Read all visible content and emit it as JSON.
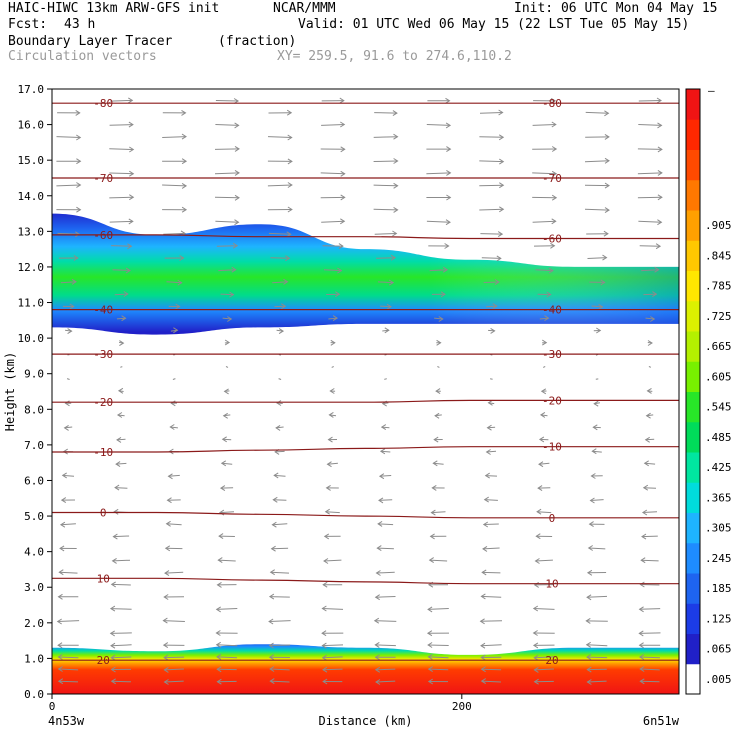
{
  "header": {
    "model": "HAIC-HIWC 13km ARW-GFS init",
    "org": "NCAR/MMM",
    "init": "Init: 06 UTC Mon 04 May 15",
    "fcst_label": "Fcst:",
    "fcst_value": "43 h",
    "valid": "Valid: 01 UTC Wed 06 May 15 (22 LST Tue 05 May 15)",
    "field1": "Boundary Layer Tracer",
    "field1_units": "(fraction)",
    "field2": "Circulation vectors",
    "xy": "XY= 259.5, 91.6 to 274.6,110.2"
  },
  "chart_data": {
    "type": "heatmap",
    "title": "",
    "xlabel": "Distance (km)",
    "ylabel": "Height (km)",
    "xlim": [
      0,
      306
    ],
    "ylim": [
      0,
      17
    ],
    "x_ticks": [
      0,
      200
    ],
    "x_tick_labels": [
      "0",
      "200"
    ],
    "x_end_labels": [
      "4n53w",
      "6n51w"
    ],
    "y_ticks": [
      0,
      1,
      2,
      3,
      4,
      5,
      6,
      7,
      8,
      9,
      10,
      11,
      12,
      13,
      14,
      15,
      16,
      17
    ],
    "y_tick_labels": [
      "0.0",
      "1.0",
      "2.0",
      "3.0",
      "4.0",
      "5.0",
      "6.0",
      "7.0",
      "8.0",
      "9.0",
      "10.0",
      "11.0",
      "12.0",
      "13.0",
      "14.0",
      "15.0",
      "16.0",
      "17.0"
    ],
    "colorbar": {
      "labels": [
        ".005",
        ".065",
        ".125",
        ".185",
        ".245",
        ".305",
        ".365",
        ".425",
        ".485",
        ".545",
        ".605",
        ".665",
        ".725",
        ".785",
        ".845",
        ".905"
      ],
      "top_label": "–",
      "colors": [
        "#ffffff",
        "#2020c8",
        "#1c3ce6",
        "#1e64f0",
        "#1e8cff",
        "#1eb4ff",
        "#00dcdc",
        "#00e6a0",
        "#00dc5a",
        "#28e628",
        "#78f000",
        "#b4f000",
        "#dcf000",
        "#ffe600",
        "#ffc800",
        "#ffa000",
        "#ff7800",
        "#ff4a00",
        "#ff2800",
        "#f01414"
      ]
    },
    "tracer_layers": [
      {
        "name": "upper",
        "base_km": [
          10.3,
          10.1,
          10.3,
          10.4,
          10.4,
          10.4,
          10.4
        ],
        "top_km": [
          13.5,
          12.9,
          13.2,
          12.5,
          12.2,
          12.0,
          12.0
        ],
        "core_level": 0.5
      },
      {
        "name": "lower",
        "base_km": [
          0,
          0,
          0,
          0,
          0,
          0,
          0
        ],
        "top_km": [
          1.3,
          1.2,
          1.4,
          1.3,
          1.1,
          1.3,
          1.3
        ],
        "core_level": 0.95
      }
    ],
    "contours": [
      {
        "label": "20",
        "km": [
          0.95,
          0.95,
          0.95,
          0.95,
          0.95,
          0.95,
          0.95
        ]
      },
      {
        "label": "10",
        "km": [
          3.25,
          3.25,
          3.2,
          3.15,
          3.1,
          3.1,
          3.1
        ]
      },
      {
        "label": "0",
        "km": [
          5.1,
          5.1,
          5.05,
          5.0,
          4.95,
          4.95,
          4.95
        ]
      },
      {
        "label": "-10",
        "km": [
          6.8,
          6.8,
          6.85,
          6.9,
          6.95,
          6.95,
          6.95
        ]
      },
      {
        "label": "-20",
        "km": [
          8.2,
          8.2,
          8.2,
          8.2,
          8.25,
          8.25,
          8.25
        ]
      },
      {
        "label": "-30",
        "km": [
          9.55,
          9.55,
          9.55,
          9.55,
          9.55,
          9.55,
          9.55
        ]
      },
      {
        "label": "-40",
        "km": [
          10.8,
          10.8,
          10.8,
          10.8,
          10.8,
          10.8,
          10.8
        ]
      },
      {
        "label": "-60",
        "km": [
          12.9,
          12.9,
          12.85,
          12.85,
          12.8,
          12.8,
          12.8
        ]
      },
      {
        "label": "-70",
        "km": [
          14.5,
          14.5,
          14.5,
          14.5,
          14.5,
          14.5,
          14.5
        ]
      },
      {
        "label": "-80",
        "km": [
          16.6,
          16.6,
          16.6,
          16.6,
          16.6,
          16.6,
          16.6
        ]
      }
    ],
    "vectors": {
      "color": "#8c8c8c",
      "wind_profile": [
        {
          "km": 0.5,
          "u": -0.8
        },
        {
          "km": 2,
          "u": -0.9
        },
        {
          "km": 5,
          "u": -0.6
        },
        {
          "km": 8.5,
          "u": -0.2
        },
        {
          "km": 10.5,
          "u": 0.35
        },
        {
          "km": 12,
          "u": 0.75
        },
        {
          "km": 13.5,
          "u": 1.0
        },
        {
          "km": 15.5,
          "u": 1.0
        },
        {
          "km": 17,
          "u": 0.9
        }
      ]
    }
  }
}
